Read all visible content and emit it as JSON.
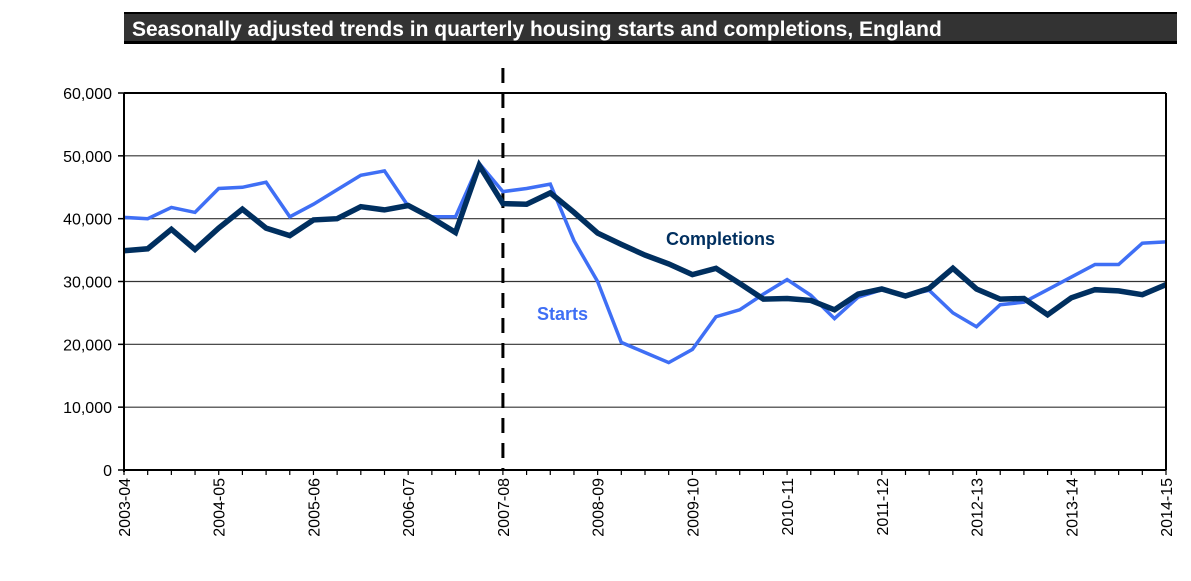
{
  "chart_data": {
    "type": "line",
    "title": "Seasonally adjusted trends in quarterly housing starts and completions, England",
    "xlabel": "",
    "ylabel": "",
    "ylim": [
      0,
      60000
    ],
    "yticks": [
      0,
      10000,
      20000,
      30000,
      40000,
      50000,
      60000
    ],
    "ytick_labels": [
      "0",
      "10,000",
      "20,000",
      "30,000",
      "40,000",
      "50,000",
      "60,000"
    ],
    "x_count": 45,
    "xtick_labels": [
      {
        "index": 0,
        "label": "2003-04"
      },
      {
        "index": 4,
        "label": "2004-05"
      },
      {
        "index": 8,
        "label": "2005-06"
      },
      {
        "index": 12,
        "label": "2006-07"
      },
      {
        "index": 16,
        "label": "2007-08"
      },
      {
        "index": 20,
        "label": "2008-09"
      },
      {
        "index": 24,
        "label": "2009-10"
      },
      {
        "index": 28,
        "label": "2010-11"
      },
      {
        "index": 32,
        "label": "2011-12"
      },
      {
        "index": 36,
        "label": "2012-13"
      },
      {
        "index": 40,
        "label": "2013-14"
      },
      {
        "index": 44,
        "label": "2014-15"
      }
    ],
    "grid": true,
    "vertical_marker": {
      "index": 16,
      "style": "dashed"
    },
    "series": [
      {
        "name": "Starts",
        "color": "#3f6ff5",
        "values": [
          40200,
          40000,
          41800,
          41000,
          44800,
          45000,
          45800,
          40300,
          42300,
          44600,
          46900,
          47600,
          42000,
          40300,
          40300,
          48800,
          44300,
          44800,
          45500,
          36500,
          30000,
          20300,
          18700,
          17100,
          19200,
          24400,
          25500,
          28000,
          30300,
          27800,
          24100,
          27500,
          28700,
          27800,
          28600,
          25000,
          22800,
          26300,
          26700,
          28700,
          30700,
          32700,
          32700,
          36100,
          36300
        ]
      },
      {
        "name": "Completions",
        "color": "#002f5f",
        "values": [
          34900,
          35200,
          38300,
          35100,
          38500,
          41500,
          38500,
          37300,
          39800,
          40000,
          41900,
          41400,
          42100,
          40100,
          37800,
          48500,
          42400,
          42300,
          44100,
          41000,
          37700,
          35900,
          34200,
          32800,
          31100,
          32100,
          29700,
          27200,
          27300,
          27000,
          25500,
          28000,
          28800,
          27700,
          28900,
          32100,
          28800,
          27200,
          27300,
          24700,
          27400,
          28700,
          28500,
          27900,
          29500
        ]
      }
    ],
    "annotations": [
      {
        "text": "Completions",
        "series": "Completions"
      },
      {
        "text": "Starts",
        "series": "Starts"
      }
    ]
  }
}
